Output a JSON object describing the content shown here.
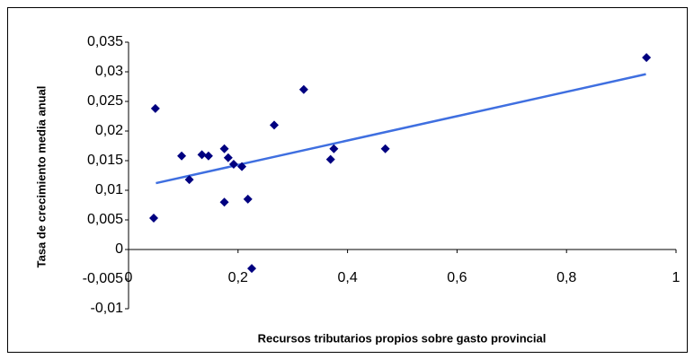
{
  "chart_data": {
    "type": "scatter",
    "x_label": "Recursos tributarios propios sobre gasto provincial",
    "y_label": "Tasa de crecimiento media anual",
    "x": [
      0.049,
      0.046,
      0.097,
      0.111,
      0.134,
      0.146,
      0.175,
      0.182,
      0.192,
      0.207,
      0.175,
      0.218,
      0.225,
      0.266,
      0.32,
      0.369,
      0.375,
      0.469,
      0.946
    ],
    "values": [
      0.0238,
      0.0053,
      0.0158,
      0.0118,
      0.016,
      0.0158,
      0.017,
      0.0155,
      0.0144,
      0.014,
      0.008,
      0.0085,
      -0.0032,
      0.021,
      0.027,
      0.0152,
      0.017,
      0.017,
      0.0324
    ],
    "color": "#000080",
    "trendline": {
      "x": [
        0.05,
        0.945
      ],
      "values": [
        0.0112,
        0.0296
      ],
      "color": "#3f6fe0"
    },
    "xlim": [
      0,
      1
    ],
    "xticks": [
      0,
      {
        "value": 0.2,
        "label": "0,2"
      },
      {
        "value": 0.4,
        "label": "0,4"
      },
      {
        "value": 0.6,
        "label": "0,6"
      },
      {
        "value": 0.8,
        "label": "0,8"
      },
      1
    ],
    "ylim": [
      -0.01,
      0.035
    ],
    "yticks": [
      {
        "value": -0.01,
        "label": "-0,01"
      },
      {
        "value": -0.005,
        "label": "-0,005"
      },
      0,
      {
        "value": 0.005,
        "label": "0,005"
      },
      {
        "value": 0.01,
        "label": "0,01"
      },
      {
        "value": 0.015,
        "label": "0,015"
      },
      {
        "value": 0.02,
        "label": "0,02"
      },
      {
        "value": 0.025,
        "label": "0,025"
      },
      {
        "value": 0.03,
        "label": "0,03"
      },
      {
        "value": 0.035,
        "label": "0,035"
      }
    ],
    "grid": false
  }
}
